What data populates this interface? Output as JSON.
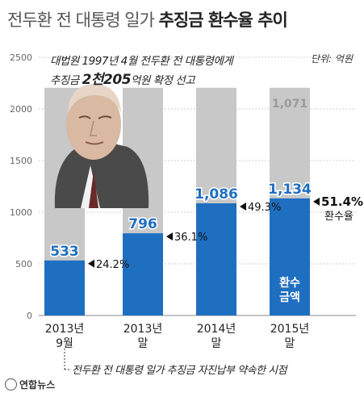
{
  "title_normal": "전두환 전 대통령 일가",
  "title_bold": "추징금 환수율 추이",
  "note_line1": "대법원 1997년 4월 전두환 전 대통령에게",
  "note_line2_a": "추징금",
  "note_line2_b": "2천205",
  "note_line2_c": "억원 확정 선고",
  "unit": "단위: 억원",
  "footnote": "전두환 전 대통령 일가 추징금 자진납부 약속한 시점",
  "source": "연합뉴스",
  "recovered_label_1": "환수",
  "recovered_label_2": "금액",
  "rate_sublabel": "환수율",
  "colors": {
    "recovered": "#1f6fc1",
    "remaining": "#c8c8c8",
    "value_text": "#1f6fc1",
    "remaining_text": "#9a9a9a"
  },
  "icons": [
    "portrait-photo",
    "left-triangle-pointer",
    "yonhap-logo"
  ],
  "chart_data": {
    "type": "bar",
    "stacked": true,
    "categories": [
      [
        "2013년",
        "9월"
      ],
      [
        "2013년",
        "말"
      ],
      [
        "2014년",
        "말"
      ],
      [
        "2015년",
        "말"
      ]
    ],
    "series": [
      {
        "values": [
          533,
          796,
          1086,
          1134
        ]
      },
      {
        "values": [
          null,
          null,
          null,
          1071
        ]
      }
    ],
    "total": 2205,
    "rates": [
      "24.2%",
      "36.1%",
      "49.3%",
      "51.4%"
    ],
    "ylim": [
      0,
      2500
    ],
    "yticks": [
      0,
      500,
      1000,
      1500,
      2000,
      2500
    ],
    "grid": true
  }
}
